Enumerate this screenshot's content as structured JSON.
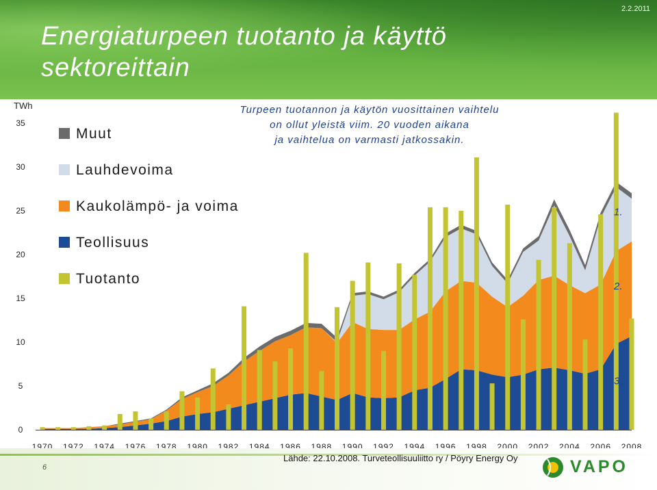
{
  "header": {
    "title_line1": "Energiaturpeen tuotanto ja käyttö",
    "title_line2": "sektoreittain",
    "date": "2.2.2011"
  },
  "note": {
    "line1": "Turpeen tuotannon ja käytön vuosittainen vaihtelu",
    "line2": "on ollut yleistä viim. 20 vuoden aikana",
    "line3": "ja vaihtelua on varmasti jatkossakin."
  },
  "footer": {
    "page_number": "6",
    "source": "Lähde: 22.10.2008. Turveteollisuuliitto ry / Pöyry Energy Oy",
    "logo_text": "VAPO"
  },
  "colors": {
    "muut": "#6b6b6b",
    "lauhdevoima": "#d2dbe8",
    "kaukolampo": "#f28a1e",
    "teollisuus": "#1d4b94",
    "tuotanto": "#c2c432"
  },
  "chart_data": {
    "type": "area",
    "ylabel": "TWh",
    "ylim": [
      0,
      35
    ],
    "yticks": [
      0,
      5,
      10,
      15,
      20,
      25,
      30,
      35
    ],
    "xticks": [
      "1970",
      "1972",
      "1974",
      "1976",
      "1978",
      "1980",
      "1982",
      "1984",
      "1986",
      "1988",
      "1990",
      "1992",
      "1994",
      "1996",
      "1998",
      "2000",
      "2002",
      "2004",
      "2006",
      "2008"
    ],
    "x": [
      1970,
      1971,
      1972,
      1973,
      1974,
      1975,
      1976,
      1977,
      1978,
      1979,
      1980,
      1981,
      1982,
      1983,
      1984,
      1985,
      1986,
      1987,
      1988,
      1989,
      1990,
      1991,
      1992,
      1993,
      1994,
      1995,
      1996,
      1997,
      1998,
      1999,
      2000,
      2001,
      2002,
      2003,
      2004,
      2005,
      2006,
      2007,
      2008
    ],
    "legend_position": "left",
    "series": [
      {
        "name": "Muut",
        "kind": "area-stacked",
        "values": [
          0,
          0,
          0,
          0,
          0,
          0.1,
          0.1,
          0.1,
          0.1,
          0.2,
          0.2,
          0.3,
          0.3,
          0.4,
          0.5,
          0.5,
          0.5,
          0.5,
          0.5,
          0.5,
          0.3,
          0.3,
          0.3,
          0.3,
          0.3,
          0.3,
          0.4,
          0.4,
          0.4,
          0.4,
          0.4,
          0.4,
          0.5,
          0.7,
          0.7,
          0.6,
          0.6,
          0.6,
          0.6
        ]
      },
      {
        "name": "Lauhdevoima",
        "kind": "area-stacked",
        "values": [
          0,
          0,
          0,
          0,
          0,
          0,
          0,
          0,
          0,
          0,
          0,
          0,
          0,
          0,
          0,
          0,
          0,
          0,
          0,
          0.1,
          3.0,
          4.0,
          3.5,
          4.3,
          5.0,
          5.7,
          6.2,
          6.0,
          5.5,
          3.5,
          2.7,
          5.0,
          4.5,
          8.0,
          5.6,
          2.6,
          7.6,
          7.3,
          4.9
        ]
      },
      {
        "name": "Kaukolämpö- ja voima",
        "kind": "area-stacked",
        "values": [
          0.1,
          0.1,
          0.1,
          0.2,
          0.2,
          0.3,
          0.4,
          0.5,
          1.2,
          2.0,
          2.5,
          3.0,
          3.8,
          5.0,
          5.8,
          6.5,
          6.8,
          7.5,
          7.8,
          6.5,
          8.1,
          7.8,
          7.8,
          7.7,
          8.1,
          8.7,
          10.0,
          10.1,
          10.0,
          8.9,
          8.0,
          9.0,
          10.2,
          10.5,
          9.7,
          9.2,
          9.7,
          10.6,
          10.8
        ]
      },
      {
        "name": "Teollisuus",
        "kind": "area-stacked",
        "values": [
          0.1,
          0.1,
          0.1,
          0.1,
          0.2,
          0.3,
          0.5,
          0.7,
          1.0,
          1.5,
          1.8,
          2.0,
          2.4,
          2.8,
          3.2,
          3.6,
          4.0,
          4.2,
          3.8,
          3.4,
          4.2,
          3.7,
          3.6,
          3.7,
          4.5,
          4.8,
          5.8,
          6.9,
          6.8,
          6.3,
          6.0,
          6.3,
          6.9,
          7.1,
          6.8,
          6.4,
          6.9,
          9.8,
          10.7
        ]
      },
      {
        "name": "Tuotanto",
        "kind": "bar",
        "values": [
          0.3,
          0.3,
          0.3,
          0.4,
          0.5,
          1.8,
          2.1,
          1.3,
          2.1,
          4.4,
          3.7,
          7.0,
          2.9,
          14.1,
          9.1,
          7.8,
          9.3,
          20.2,
          6.7,
          14.0,
          17.0,
          19.1,
          9.0,
          19.0,
          17.7,
          25.4,
          25.4,
          25.0,
          31.1,
          5.3,
          25.7,
          12.6,
          19.4,
          25.4,
          21.3,
          10.3,
          24.6,
          36.2,
          12.7
        ]
      }
    ],
    "annotations": [
      {
        "text": "1.",
        "y": 24.5
      },
      {
        "text": "2.",
        "y": 16.0
      },
      {
        "text": "3.",
        "y": 5.2
      }
    ]
  }
}
